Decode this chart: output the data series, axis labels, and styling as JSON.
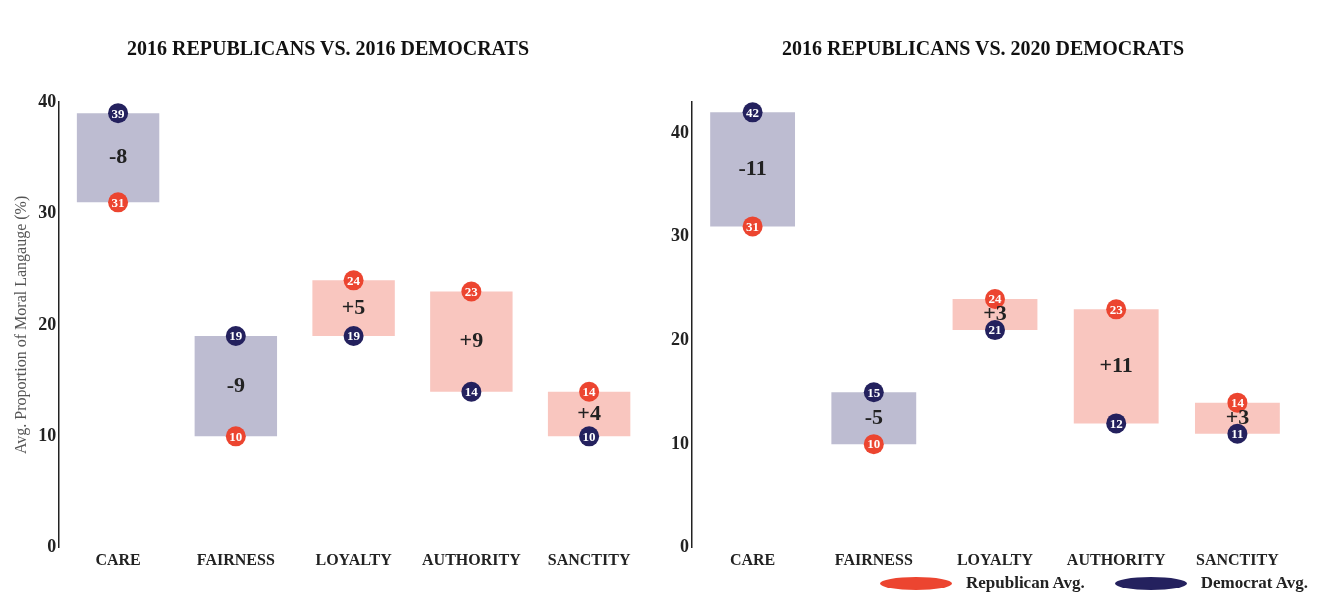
{
  "chart_data": [
    {
      "type": "bar",
      "title": "2016 REPUBLICANS VS. 2016 DEMOCRATS",
      "ylabel": "Avg. Proportion of Moral Langauge (%)",
      "categories": [
        "CARE",
        "FAIRNESS",
        "LOYALTY",
        "AUTHORITY",
        "SANCTITY"
      ],
      "ylim": [
        0,
        40
      ],
      "yticks": [
        0,
        10,
        20,
        30,
        40
      ],
      "grid": false,
      "marker": "circle",
      "series": [
        {
          "type": "bar",
          "base": [
            39,
            19,
            19,
            14,
            10
          ],
          "values": [
            -8,
            -9,
            5,
            9,
            4
          ],
          "colors": [
            "#bdbcd1",
            "#bdbcd1",
            "#f9c6bf",
            "#f9c6bf",
            "#f9c6bf"
          ],
          "value_labels": [
            "-8",
            "-9",
            "+5",
            "+9",
            "+4"
          ]
        },
        {
          "type": "scatter",
          "color": "#ec4530",
          "values": [
            31,
            10,
            24,
            23,
            14
          ],
          "value_labels": [
            "31",
            "10",
            "24",
            "23",
            "14"
          ]
        },
        {
          "type": "scatter",
          "color": "#24215e",
          "values": [
            39,
            19,
            19,
            14,
            10
          ],
          "value_labels": [
            "39",
            "19",
            "19",
            "14",
            "10"
          ]
        }
      ]
    },
    {
      "type": "bar",
      "title": "2016 REPUBLICANS VS. 2020 DEMOCRATS",
      "categories": [
        "CARE",
        "FAIRNESS",
        "LOYALTY",
        "AUTHORITY",
        "SANCTITY"
      ],
      "ylim": [
        0,
        43
      ],
      "yticks": [
        0,
        10,
        20,
        30,
        40
      ],
      "grid": false,
      "marker": "circle",
      "legend": "bottom right",
      "series": [
        {
          "type": "bar",
          "base": [
            42,
            15,
            21,
            12,
            11
          ],
          "values": [
            -11,
            -5,
            3,
            11,
            3
          ],
          "colors": [
            "#bdbcd1",
            "#bdbcd1",
            "#f9c6bf",
            "#f9c6bf",
            "#f9c6bf"
          ],
          "value_labels": [
            "-11",
            "-5",
            "+3",
            "+11",
            "+3"
          ]
        },
        {
          "type": "scatter",
          "name": "Republican Avg.",
          "color": "#ec4530",
          "values": [
            31,
            10,
            24,
            23,
            14
          ],
          "value_labels": [
            "31",
            "10",
            "24",
            "23",
            "14"
          ]
        },
        {
          "type": "scatter",
          "name": "Democrat Avg.",
          "color": "#24215e",
          "values": [
            42,
            15,
            21,
            12,
            11
          ],
          "value_labels": [
            "42",
            "15",
            "21",
            "12",
            "11"
          ]
        }
      ]
    }
  ]
}
